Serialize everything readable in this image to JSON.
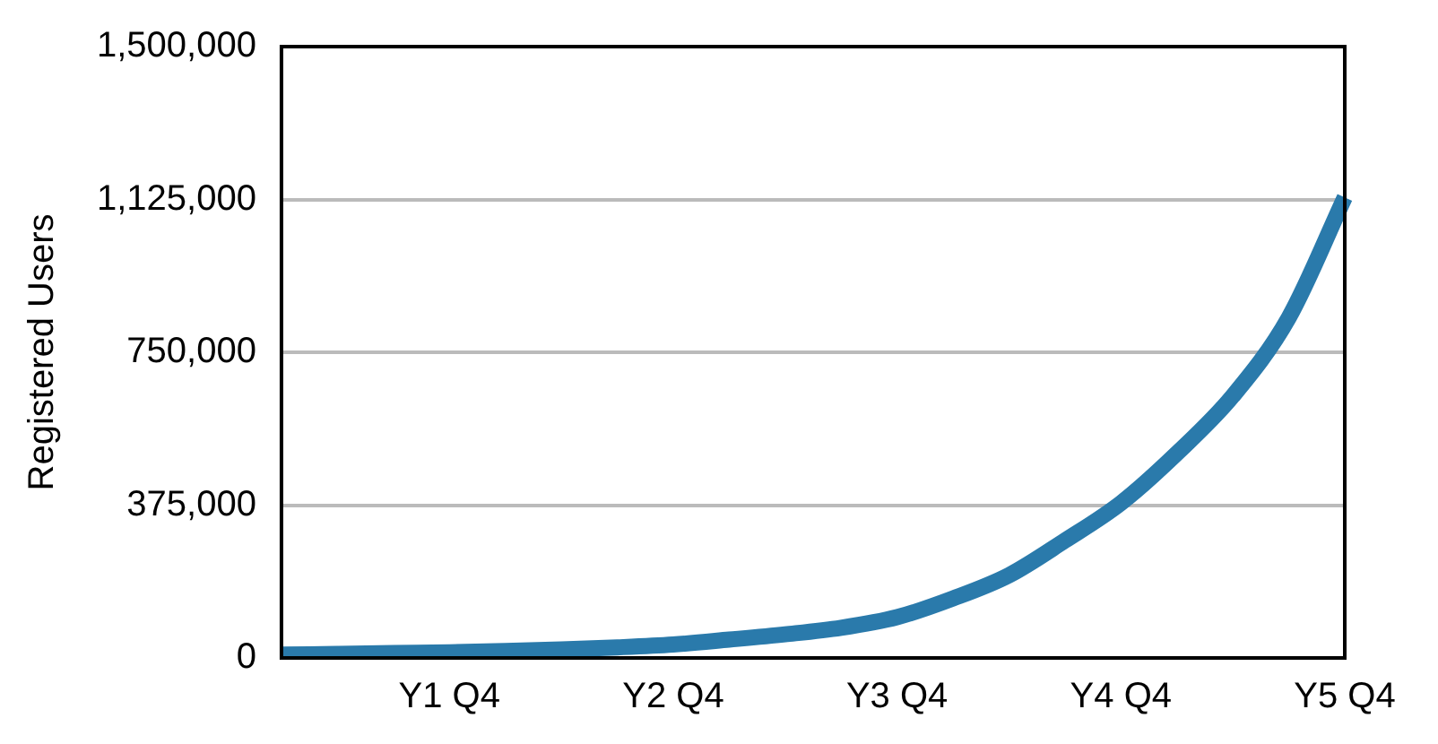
{
  "chart_data": {
    "type": "line",
    "ylabel": "Registered Users",
    "categories": [
      null,
      null,
      null,
      "Y1 Q4",
      null,
      null,
      null,
      "Y2 Q4",
      null,
      null,
      null,
      "Y3 Q4",
      null,
      null,
      null,
      "Y4 Q4",
      null,
      null,
      null,
      "Y5 Q4"
    ],
    "series": [
      {
        "color": "#2a7aab",
        "values": [
          8000,
          10000,
          12000,
          14000,
          17000,
          21000,
          26000,
          33000,
          45000,
          58000,
          74000,
          100000,
          146000,
          203000,
          288000,
          380000,
          502000,
          643000,
          835000,
          1130000
        ]
      }
    ],
    "ylim": [
      0,
      1500000
    ],
    "yticks": [
      0,
      {
        "value": 375000,
        "label": "375,000"
      },
      {
        "value": 750000,
        "label": "750,000"
      },
      {
        "value": 1125000,
        "label": "1,125,000"
      },
      {
        "value": 1500000,
        "label": "1,500,000"
      }
    ],
    "grid": "y",
    "legend": false,
    "marker": "none",
    "line_style": "solid"
  }
}
